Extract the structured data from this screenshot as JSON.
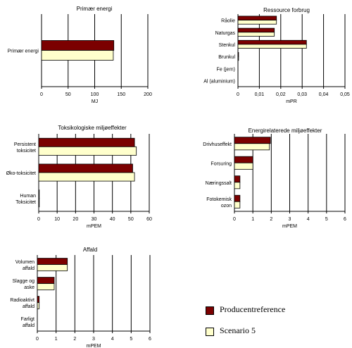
{
  "colors": {
    "producentreference": "#7b0000",
    "scenario5": "#ffffcc",
    "axis": "#000000"
  },
  "legend": [
    {
      "name": "Producentreference",
      "color": "#7b0000"
    },
    {
      "name": "Scenario 5",
      "color": "#ffffcc"
    }
  ],
  "chart_data": [
    {
      "type": "bar",
      "orientation": "horizontal",
      "title": "Primær energi",
      "xlabel": "MJ",
      "categories": [
        "Primær energi"
      ],
      "series": [
        {
          "name": "Producentreference",
          "values": [
            136
          ]
        },
        {
          "name": "Scenario 5",
          "values": [
            135
          ]
        }
      ],
      "xlim": [
        0,
        200
      ],
      "xticks": [
        "0",
        "50",
        "100",
        "150",
        "200"
      ],
      "grid": true
    },
    {
      "type": "bar",
      "orientation": "horizontal",
      "title": "Ressource forbrug",
      "xlabel": "mPR",
      "categories": [
        "Råolie",
        "Naturgas",
        "Stenkul",
        "Brunkul",
        "Fe (jern)",
        "Al (aluminium)"
      ],
      "series": [
        {
          "name": "Producentreference",
          "values": [
            0.018,
            0.017,
            0.032,
            0.0003,
            0,
            0
          ]
        },
        {
          "name": "Scenario 5",
          "values": [
            0.018,
            0.017,
            0.032,
            0.0003,
            0,
            0
          ]
        }
      ],
      "xlim": [
        0,
        0.05
      ],
      "xticks": [
        "0",
        "0,01",
        "0,02",
        "0,03",
        "0,04",
        "0,05"
      ],
      "grid": true
    },
    {
      "type": "bar",
      "orientation": "horizontal",
      "title": "Toksikologiske miljøeffekter",
      "xlabel": "mPEM",
      "categories": [
        "Persistent toksicitet",
        "Øko-toksicitet",
        "Human Toksicitet"
      ],
      "series": [
        {
          "name": "Producentreference",
          "values": [
            52,
            51,
            0.3
          ]
        },
        {
          "name": "Scenario 5",
          "values": [
            53,
            52,
            0.3
          ]
        }
      ],
      "xlim": [
        0,
        60
      ],
      "xticks": [
        "0",
        "10",
        "20",
        "30",
        "40",
        "50",
        "60"
      ],
      "grid": true
    },
    {
      "type": "bar",
      "orientation": "horizontal",
      "title": "Energirelaterede miljøeffekter",
      "xlabel": "mPEM",
      "categories": [
        "Drivhuseffekt",
        "Forsuring",
        "Næringssalt",
        "Fotokemisk ozon"
      ],
      "series": [
        {
          "name": "Producentreference",
          "values": [
            1.95,
            1.0,
            0.3,
            0.3
          ]
        },
        {
          "name": "Scenario 5",
          "values": [
            1.9,
            1.0,
            0.3,
            0.3
          ]
        }
      ],
      "xlim": [
        0,
        6
      ],
      "xticks": [
        "0",
        "1",
        "2",
        "3",
        "4",
        "5",
        "6"
      ],
      "grid": true
    },
    {
      "type": "bar",
      "orientation": "horizontal",
      "title": "Affald",
      "xlabel": "mPEM",
      "categories": [
        "Volumen affald",
        "Slagge og aske",
        "Radioaktivt affald",
        "Farligt affald"
      ],
      "series": [
        {
          "name": "Producentreference",
          "values": [
            1.6,
            0.9,
            0.1,
            0
          ]
        },
        {
          "name": "Scenario 5",
          "values": [
            1.6,
            0.9,
            0.1,
            0
          ]
        }
      ],
      "xlim": [
        0,
        6
      ],
      "xticks": [
        "0",
        "1",
        "2",
        "3",
        "4",
        "5",
        "6"
      ],
      "grid": true
    }
  ]
}
